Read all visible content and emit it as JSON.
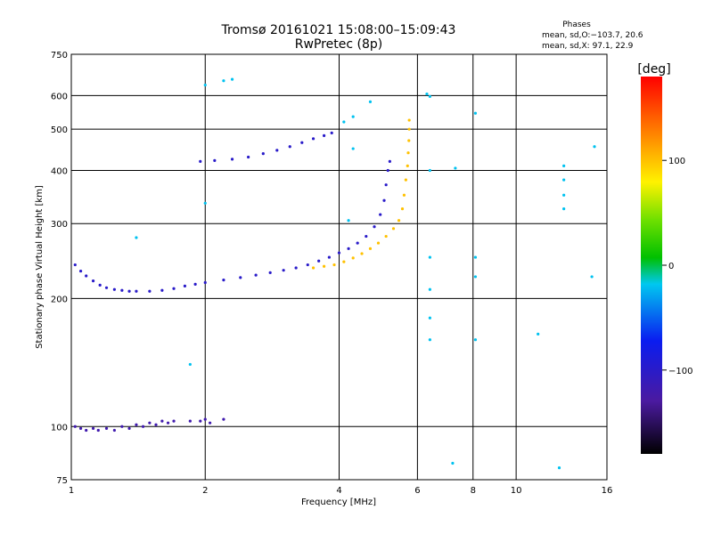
{
  "chart_data": {
    "type": "scatter",
    "title_line1": "Tromsø 20161021 15:08:00–15:09:43",
    "title_line2": "RwPretec (8p)",
    "xlabel": "Frequency [MHz]",
    "ylabel": "Stationary phase Virtual Height [km]",
    "x_scale": "log",
    "y_scale": "log",
    "xlim": [
      1,
      16
    ],
    "ylim": [
      75,
      750
    ],
    "x_ticks": [
      1,
      2,
      4,
      6,
      8,
      10,
      16
    ],
    "y_ticks": [
      75,
      100,
      200,
      300,
      400,
      500,
      600,
      750
    ],
    "grid": true,
    "phases": {
      "title": "Phases",
      "line_o": "mean, sd,O:−103.7, 20.6",
      "line_x": "mean, sd,X:  97.1, 22.9"
    },
    "colorbar": {
      "unit": "[deg]",
      "ticks": [
        100,
        0,
        -100
      ],
      "range": [
        -180,
        180
      ]
    },
    "series": [
      {
        "trace": "o-mode-e-region",
        "points": [
          [
            1.02,
            100
          ],
          [
            1.05,
            99
          ],
          [
            1.08,
            98
          ],
          [
            1.12,
            99
          ],
          [
            1.15,
            98
          ],
          [
            1.2,
            99
          ],
          [
            1.25,
            98
          ],
          [
            1.3,
            100
          ],
          [
            1.35,
            99
          ],
          [
            1.4,
            101
          ],
          [
            1.45,
            100
          ],
          [
            1.5,
            102
          ],
          [
            1.55,
            101
          ],
          [
            1.6,
            103
          ],
          [
            1.65,
            102
          ],
          [
            1.7,
            103
          ],
          [
            1.85,
            103
          ],
          [
            1.95,
            103
          ],
          [
            2.0,
            104
          ],
          [
            2.05,
            102
          ],
          [
            2.2,
            104
          ]
        ],
        "phase": -120
      },
      {
        "trace": "o-mode-f-region",
        "points": [
          [
            1.02,
            240
          ],
          [
            1.05,
            232
          ],
          [
            1.08,
            226
          ],
          [
            1.12,
            220
          ],
          [
            1.16,
            215
          ],
          [
            1.2,
            212
          ],
          [
            1.25,
            210
          ],
          [
            1.3,
            209
          ],
          [
            1.35,
            208
          ],
          [
            1.4,
            208
          ],
          [
            1.5,
            208
          ],
          [
            1.6,
            209
          ],
          [
            1.7,
            211
          ],
          [
            1.8,
            214
          ],
          [
            1.9,
            216
          ],
          [
            2.0,
            218
          ],
          [
            2.2,
            221
          ],
          [
            2.4,
            224
          ],
          [
            2.6,
            227
          ],
          [
            2.8,
            230
          ],
          [
            3.0,
            233
          ],
          [
            3.2,
            236
          ],
          [
            3.4,
            240
          ],
          [
            3.6,
            245
          ],
          [
            3.8,
            250
          ],
          [
            4.0,
            256
          ],
          [
            4.2,
            262
          ],
          [
            4.4,
            270
          ],
          [
            4.6,
            280
          ],
          [
            4.8,
            295
          ],
          [
            4.95,
            315
          ],
          [
            5.05,
            340
          ],
          [
            5.1,
            370
          ],
          [
            5.15,
            400
          ],
          [
            5.2,
            420
          ]
        ],
        "phase": -100
      },
      {
        "trace": "x-mode-f-region",
        "points": [
          [
            3.5,
            236
          ],
          [
            3.7,
            238
          ],
          [
            3.9,
            240
          ],
          [
            4.1,
            244
          ],
          [
            4.3,
            249
          ],
          [
            4.5,
            255
          ],
          [
            4.7,
            262
          ],
          [
            4.9,
            270
          ],
          [
            5.1,
            280
          ],
          [
            5.3,
            292
          ],
          [
            5.45,
            305
          ],
          [
            5.55,
            325
          ],
          [
            5.6,
            350
          ],
          [
            5.65,
            380
          ],
          [
            5.7,
            410
          ],
          [
            5.72,
            440
          ],
          [
            5.74,
            470
          ],
          [
            5.75,
            500
          ],
          [
            5.75,
            525
          ]
        ],
        "phase": 100
      },
      {
        "trace": "upper-trace",
        "points": [
          [
            1.95,
            420
          ],
          [
            2.1,
            422
          ],
          [
            2.3,
            425
          ],
          [
            2.5,
            430
          ],
          [
            2.7,
            438
          ],
          [
            2.9,
            446
          ],
          [
            3.1,
            455
          ],
          [
            3.3,
            465
          ],
          [
            3.5,
            475
          ],
          [
            3.7,
            483
          ],
          [
            3.85,
            490
          ]
        ],
        "phase": -100
      },
      {
        "trace": "sparse-points",
        "points": [
          [
            2.0,
            635
          ],
          [
            2.2,
            650
          ],
          [
            2.3,
            655
          ],
          [
            2.0,
            335
          ],
          [
            4.1,
            520
          ],
          [
            4.3,
            535
          ],
          [
            4.7,
            580
          ],
          [
            6.3,
            605
          ],
          [
            6.4,
            597
          ],
          [
            6.4,
            400
          ],
          [
            7.3,
            405
          ],
          [
            8.1,
            545
          ],
          [
            6.4,
            250
          ],
          [
            6.4,
            210
          ],
          [
            8.1,
            250
          ],
          [
            8.1,
            225
          ],
          [
            6.4,
            180
          ],
          [
            6.4,
            160
          ],
          [
            8.1,
            160
          ],
          [
            7.2,
            82
          ],
          [
            11.2,
            165
          ],
          [
            12.5,
            80
          ],
          [
            14.8,
            225
          ],
          [
            12.8,
            410
          ],
          [
            12.8,
            380
          ],
          [
            12.8,
            350
          ],
          [
            12.8,
            325
          ],
          [
            15.0,
            455
          ],
          [
            1.85,
            140
          ],
          [
            1.4,
            278
          ],
          [
            4.2,
            305
          ],
          [
            4.3,
            450
          ]
        ],
        "phase": -20
      }
    ]
  }
}
